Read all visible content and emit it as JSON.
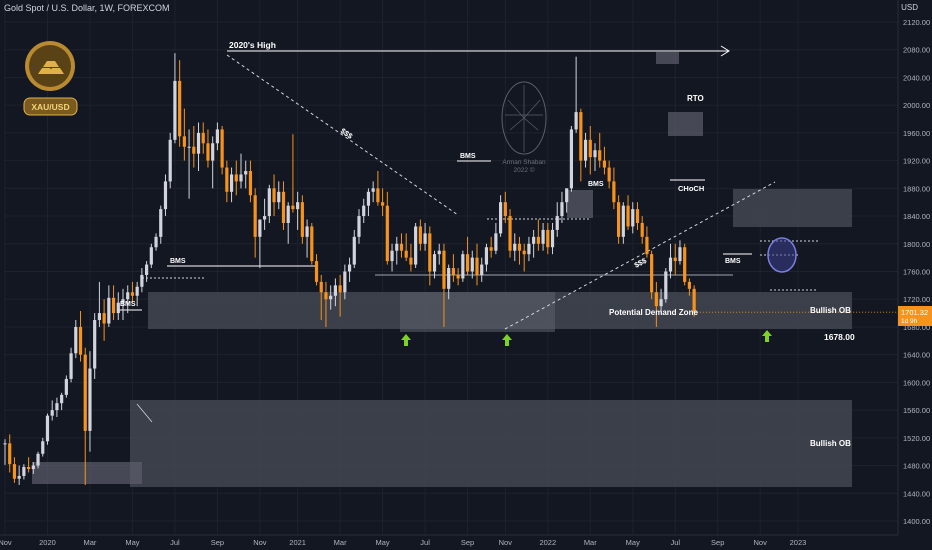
{
  "header": {
    "title": "Gold Spot / U.S. Dollar, 1W, FOREXCOM",
    "currency": "USD"
  },
  "logo": {
    "label": "XAU/USD"
  },
  "watermark": {
    "line1": "Arman Shaban",
    "line2": "2022 ©"
  },
  "price_tag": {
    "price": "1701.32",
    "countdown": "1d 9h"
  },
  "colors": {
    "background": "#131722",
    "bull": "#d1d4dc",
    "bear": "#f7931a",
    "zone": "#434651",
    "arrow": "#7ed321"
  },
  "chart_data": {
    "type": "candlestick",
    "title": "Gold Spot / U.S. Dollar, 1W, FOREXCOM",
    "ylabel": "USD",
    "ylim": [
      1380,
      2160
    ],
    "y_ticks": [
      2120,
      2080,
      2040,
      2000,
      1960,
      1920,
      1880,
      1840,
      1800,
      1760,
      1720,
      1680,
      1640,
      1600,
      1560,
      1520,
      1480,
      1440,
      1400
    ],
    "x_ticks": [
      "Nov",
      "2020",
      "Mar",
      "May",
      "Jul",
      "Sep",
      "Nov",
      "2021",
      "Mar",
      "May",
      "Jul",
      "Sep",
      "Nov",
      "2022",
      "Mar",
      "May",
      "Jul",
      "Sep",
      "Nov",
      "2023"
    ],
    "x_tick_week": [
      0,
      9,
      18,
      27,
      36,
      45,
      54,
      62,
      71,
      80,
      89,
      98,
      106,
      115,
      124,
      133,
      142,
      151,
      160,
      168
    ],
    "last_price": 1701.32,
    "candles": [
      [
        1512,
        1518,
        1481,
        1512
      ],
      [
        1512,
        1525,
        1470,
        1482
      ],
      [
        1482,
        1492,
        1455,
        1461
      ],
      [
        1461,
        1480,
        1452,
        1465
      ],
      [
        1465,
        1482,
        1460,
        1478
      ],
      [
        1478,
        1492,
        1470,
        1475
      ],
      [
        1475,
        1485,
        1468,
        1480
      ],
      [
        1480,
        1500,
        1476,
        1497
      ],
      [
        1497,
        1520,
        1493,
        1515
      ],
      [
        1515,
        1555,
        1510,
        1552
      ],
      [
        1552,
        1574,
        1545,
        1560
      ],
      [
        1560,
        1578,
        1550,
        1570
      ],
      [
        1570,
        1585,
        1560,
        1582
      ],
      [
        1582,
        1610,
        1578,
        1605
      ],
      [
        1605,
        1650,
        1600,
        1642
      ],
      [
        1642,
        1690,
        1635,
        1680
      ],
      [
        1680,
        1703,
        1630,
        1640
      ],
      [
        1640,
        1650,
        1452,
        1530
      ],
      [
        1530,
        1645,
        1500,
        1620
      ],
      [
        1620,
        1700,
        1605,
        1690
      ],
      [
        1690,
        1745,
        1680,
        1700
      ],
      [
        1700,
        1720,
        1660,
        1685
      ],
      [
        1685,
        1740,
        1680,
        1722
      ],
      [
        1722,
        1740,
        1690,
        1700
      ],
      [
        1700,
        1730,
        1690,
        1715
      ],
      [
        1715,
        1735,
        1690,
        1720
      ],
      [
        1720,
        1740,
        1700,
        1730
      ],
      [
        1730,
        1745,
        1715,
        1725
      ],
      [
        1725,
        1745,
        1710,
        1738
      ],
      [
        1738,
        1765,
        1730,
        1755
      ],
      [
        1755,
        1775,
        1745,
        1770
      ],
      [
        1770,
        1800,
        1765,
        1795
      ],
      [
        1795,
        1815,
        1790,
        1810
      ],
      [
        1810,
        1855,
        1800,
        1850
      ],
      [
        1850,
        1900,
        1840,
        1890
      ],
      [
        1890,
        1960,
        1880,
        1950
      ],
      [
        1950,
        2075,
        1945,
        2035
      ],
      [
        2035,
        2065,
        1940,
        1955
      ],
      [
        1955,
        1995,
        1920,
        1940
      ],
      [
        1940,
        1965,
        1865,
        1940
      ],
      [
        1940,
        1970,
        1910,
        1930
      ],
      [
        1930,
        1975,
        1905,
        1960
      ],
      [
        1960,
        1975,
        1930,
        1945
      ],
      [
        1945,
        1965,
        1910,
        1920
      ],
      [
        1920,
        1955,
        1880,
        1945
      ],
      [
        1945,
        1975,
        1935,
        1965
      ],
      [
        1965,
        1970,
        1900,
        1910
      ],
      [
        1910,
        1920,
        1860,
        1875
      ],
      [
        1875,
        1910,
        1860,
        1900
      ],
      [
        1900,
        1920,
        1870,
        1890
      ],
      [
        1890,
        1930,
        1880,
        1900
      ],
      [
        1900,
        1920,
        1880,
        1905
      ],
      [
        1905,
        1920,
        1860,
        1870
      ],
      [
        1870,
        1880,
        1780,
        1810
      ],
      [
        1810,
        1835,
        1765,
        1835
      ],
      [
        1835,
        1865,
        1820,
        1840
      ],
      [
        1840,
        1885,
        1830,
        1880
      ],
      [
        1880,
        1900,
        1840,
        1860
      ],
      [
        1860,
        1890,
        1850,
        1875
      ],
      [
        1875,
        1890,
        1820,
        1830
      ],
      [
        1830,
        1860,
        1800,
        1855
      ],
      [
        1855,
        1958,
        1845,
        1850
      ],
      [
        1850,
        1875,
        1820,
        1860
      ],
      [
        1860,
        1870,
        1800,
        1810
      ],
      [
        1810,
        1835,
        1780,
        1825
      ],
      [
        1825,
        1830,
        1770,
        1775
      ],
      [
        1775,
        1785,
        1740,
        1745
      ],
      [
        1745,
        1755,
        1690,
        1730
      ],
      [
        1730,
        1745,
        1680,
        1720
      ],
      [
        1720,
        1740,
        1705,
        1725
      ],
      [
        1725,
        1750,
        1710,
        1740
      ],
      [
        1740,
        1755,
        1695,
        1730
      ],
      [
        1730,
        1770,
        1720,
        1760
      ],
      [
        1760,
        1780,
        1745,
        1770
      ],
      [
        1770,
        1820,
        1765,
        1810
      ],
      [
        1810,
        1850,
        1800,
        1840
      ],
      [
        1840,
        1865,
        1830,
        1855
      ],
      [
        1855,
        1880,
        1840,
        1875
      ],
      [
        1875,
        1890,
        1860,
        1880
      ],
      [
        1880,
        1905,
        1855,
        1860
      ],
      [
        1860,
        1880,
        1840,
        1855
      ],
      [
        1855,
        1875,
        1770,
        1775
      ],
      [
        1775,
        1800,
        1760,
        1790
      ],
      [
        1790,
        1810,
        1770,
        1800
      ],
      [
        1800,
        1815,
        1780,
        1790
      ],
      [
        1790,
        1815,
        1775,
        1780
      ],
      [
        1780,
        1800,
        1760,
        1770
      ],
      [
        1770,
        1830,
        1765,
        1825
      ],
      [
        1825,
        1835,
        1790,
        1800
      ],
      [
        1800,
        1830,
        1790,
        1815
      ],
      [
        1815,
        1825,
        1740,
        1760
      ],
      [
        1760,
        1790,
        1750,
        1785
      ],
      [
        1785,
        1800,
        1770,
        1790
      ],
      [
        1790,
        1800,
        1680,
        1735
      ],
      [
        1735,
        1770,
        1720,
        1765
      ],
      [
        1765,
        1785,
        1745,
        1755
      ],
      [
        1755,
        1765,
        1740,
        1750
      ],
      [
        1750,
        1790,
        1745,
        1785
      ],
      [
        1785,
        1810,
        1755,
        1760
      ],
      [
        1760,
        1790,
        1750,
        1780
      ],
      [
        1780,
        1800,
        1740,
        1755
      ],
      [
        1755,
        1780,
        1745,
        1770
      ],
      [
        1770,
        1800,
        1760,
        1795
      ],
      [
        1795,
        1810,
        1780,
        1790
      ],
      [
        1790,
        1830,
        1785,
        1815
      ],
      [
        1815,
        1870,
        1810,
        1860
      ],
      [
        1860,
        1875,
        1830,
        1840
      ],
      [
        1840,
        1850,
        1780,
        1790
      ],
      [
        1790,
        1815,
        1775,
        1800
      ],
      [
        1800,
        1810,
        1770,
        1790
      ],
      [
        1790,
        1800,
        1760,
        1785
      ],
      [
        1785,
        1810,
        1775,
        1800
      ],
      [
        1800,
        1820,
        1780,
        1810
      ],
      [
        1810,
        1835,
        1790,
        1800
      ],
      [
        1800,
        1830,
        1790,
        1820
      ],
      [
        1820,
        1830,
        1785,
        1795
      ],
      [
        1795,
        1830,
        1785,
        1820
      ],
      [
        1820,
        1860,
        1810,
        1840
      ],
      [
        1840,
        1875,
        1830,
        1860
      ],
      [
        1860,
        1880,
        1845,
        1880
      ],
      [
        1880,
        1970,
        1875,
        1965
      ],
      [
        1965,
        2070,
        1960,
        1990
      ],
      [
        1990,
        1995,
        1890,
        1920
      ],
      [
        1920,
        1960,
        1910,
        1950
      ],
      [
        1950,
        1970,
        1900,
        1925
      ],
      [
        1925,
        1945,
        1905,
        1935
      ],
      [
        1935,
        1960,
        1910,
        1920
      ],
      [
        1920,
        1940,
        1900,
        1910
      ],
      [
        1910,
        1920,
        1880,
        1890
      ],
      [
        1890,
        1910,
        1850,
        1860
      ],
      [
        1860,
        1870,
        1800,
        1810
      ],
      [
        1810,
        1860,
        1800,
        1855
      ],
      [
        1855,
        1870,
        1820,
        1825
      ],
      [
        1825,
        1860,
        1815,
        1850
      ],
      [
        1850,
        1860,
        1820,
        1830
      ],
      [
        1830,
        1840,
        1800,
        1810
      ],
      [
        1810,
        1825,
        1780,
        1785
      ],
      [
        1785,
        1790,
        1720,
        1730
      ],
      [
        1730,
        1745,
        1680,
        1710
      ],
      [
        1710,
        1735,
        1700,
        1720
      ],
      [
        1720,
        1765,
        1715,
        1760
      ],
      [
        1760,
        1800,
        1750,
        1780
      ],
      [
        1780,
        1800,
        1755,
        1775
      ],
      [
        1775,
        1805,
        1770,
        1795
      ],
      [
        1795,
        1800,
        1740,
        1745
      ],
      [
        1745,
        1750,
        1725,
        1735
      ],
      [
        1735,
        1740,
        1695,
        1701
      ]
    ]
  },
  "annotations": {
    "high_2020": "2020's High",
    "bms_1": "BMS",
    "bms_2": "BMS",
    "bms_3": "BMS",
    "bms_4": "BMS",
    "bms_5": "BMS",
    "sss_1": "$$$",
    "sss_2": "$$$",
    "rto": "RTO",
    "choch": "CHoCH",
    "demand": "Potential Demand Zone",
    "bullish_ob_1": "Bullish OB",
    "bullish_ob_2": "Bullish OB",
    "level": "1678.00"
  }
}
